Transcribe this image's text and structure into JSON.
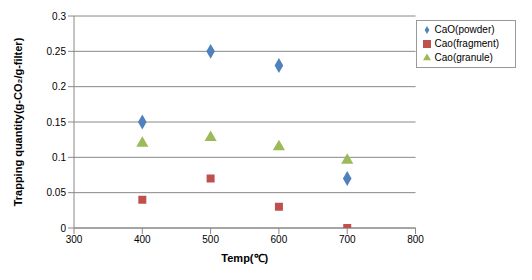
{
  "chart_data": {
    "type": "scatter",
    "x_label": "Temp(℃)",
    "y_label": "Trapping quantity(g-CO₂/g-filter)",
    "x": [
      400,
      500,
      600,
      700
    ],
    "series": [
      {
        "name": "CaO(powder)",
        "color": "#4f81bd",
        "marker": "diamond",
        "values": [
          0.15,
          0.25,
          0.23,
          0.07
        ]
      },
      {
        "name": "Cao(granule)",
        "color": "#9bbb59",
        "marker": "triangle",
        "values": [
          0.12,
          0.128,
          0.115,
          0.096
        ]
      },
      {
        "name": "Cao(fragment)",
        "color": "#c0504d",
        "marker": "square",
        "values": [
          0.04,
          0.07,
          0.03,
          0.0
        ]
      }
    ],
    "xlim": [
      300,
      800
    ],
    "xticks": [
      300,
      400,
      500,
      600,
      700,
      800
    ],
    "ylim": [
      0,
      0.3
    ],
    "yticks": [
      0,
      0.05,
      0.1,
      0.15,
      0.2,
      0.25,
      0.3
    ],
    "grid": true,
    "legend": "upper right"
  }
}
